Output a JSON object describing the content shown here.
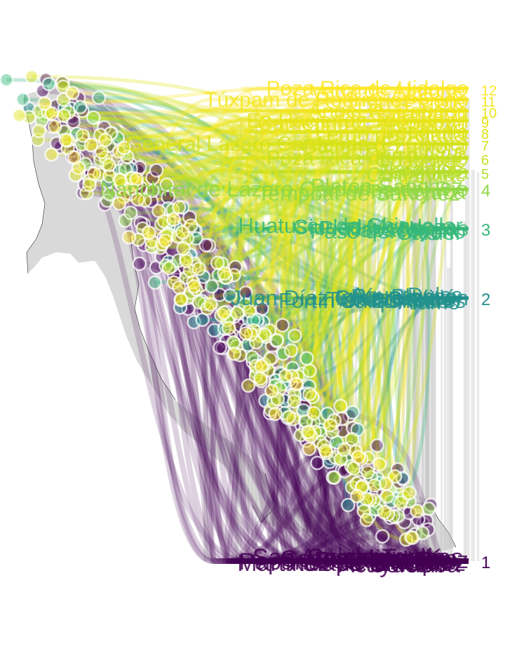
{
  "chart_data": {
    "type": "scatter",
    "title": "",
    "xlabel": "",
    "ylabel": "",
    "grid": false,
    "color_scale": [
      "#440154",
      "#31688e",
      "#21908d",
      "#35b779",
      "#8fd744",
      "#fde725"
    ],
    "rank_ticks": [
      "1",
      "2",
      "3",
      "4",
      "5",
      "6",
      "7",
      "8",
      "9",
      "10",
      "11",
      "12"
    ],
    "rank_groups": [
      {
        "rank": 1,
        "color": "#440154",
        "labels": [
          "Veracruz",
          "Xalapa-Enríquez",
          "Coatzacoalcos",
          "Córdoba",
          "Minatitlán",
          "Orizaba",
          "Boca del Río",
          "Martínez de la Torre",
          "San Andrés Tuxtla",
          "Acayucan",
          "Cosamaloapan",
          "Papantla de Olarte"
        ]
      },
      {
        "rank": 2,
        "color": "#21908d",
        "labels": [
          "Ixtaczoquitlán",
          "Fortín de las Flores",
          "Agua Dulce",
          "Álamo",
          "Río Blanco",
          "Tierra Blanca",
          "Juan Díaz Covarrubias",
          "Chiquihuite"
        ]
      },
      {
        "rank": 3,
        "color": "#35b779",
        "labels": [
          "Piedras Negras",
          "Paso del Macho",
          "Huatusco de Chicuellar",
          "Cardel",
          "Ciudad Mendoza",
          "Tlapacoyan"
        ]
      },
      {
        "rank": 4,
        "color": "#8fd744",
        "labels": [
          "Nanchital de Lázaro Cárdenas del Río",
          "Tantoyuca",
          "Platón Sánchez",
          "Tempoal de Sánchez"
        ]
      },
      {
        "rank": 5,
        "color": "#b5de2b",
        "labels": [
          "Zongolica",
          "Cuitláhuac",
          "Naranjos"
        ]
      },
      {
        "rank": 6,
        "color": "#c8e020",
        "labels": [
          "Poza Rica de Hidalgo",
          "Coatepec",
          "Cerro Azul"
        ]
      },
      {
        "rank": 7,
        "color": "#d4e21a",
        "labels": [
          "General Lázaro Cárdenas (El Chote)",
          "Gutiérrez Zamora"
        ]
      },
      {
        "rank": 8,
        "color": "#dde318",
        "labels": [
          "Tecolutla",
          "Lerdo de Tejada"
        ]
      },
      {
        "rank": 9,
        "color": "#e5e419",
        "labels": [
          "Ex-Hacienda Tecolapan",
          "Camerino Z. Mendoza"
        ]
      },
      {
        "rank": 10,
        "color": "#ece51b",
        "labels": [
          "Ángel R. Cabada",
          "Catemaco"
        ]
      },
      {
        "rank": 11,
        "color": "#f4e61e",
        "labels": [
          "Túxpam de Rodríguez Cano",
          "Perote"
        ]
      },
      {
        "rank": 12,
        "color": "#fde725",
        "labels": [
          "Poza Rica de Hidalgo",
          "Vega de Alatorre"
        ]
      }
    ]
  }
}
